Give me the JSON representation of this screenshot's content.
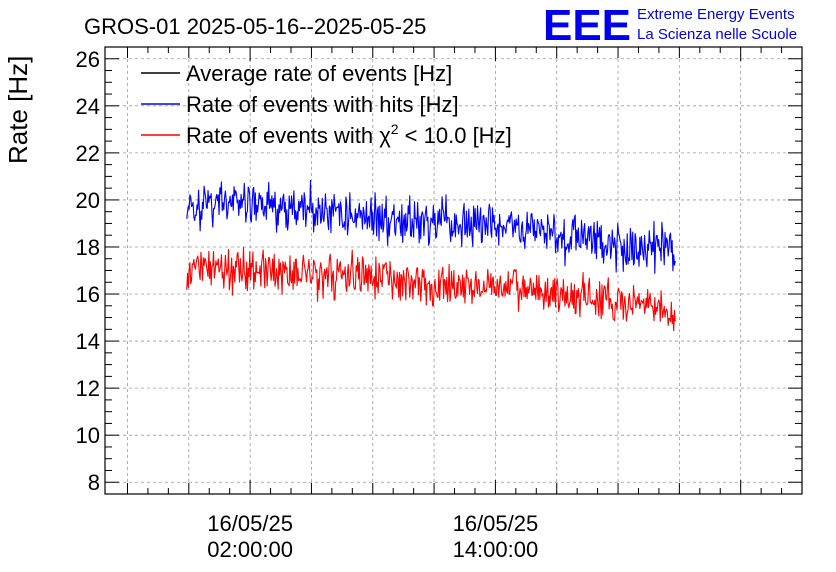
{
  "header": {
    "title": "GROS-01 2025-05-16--2025-05-25",
    "logo_text": "EEE",
    "project_line1": "Extreme Energy Events",
    "project_line2": "La Scienza nelle Scuole"
  },
  "colors": {
    "average": "#000000",
    "hits": "#0000ff",
    "chi2": "#ff0000",
    "logo": "#0000ee",
    "grid": "#9a9a9a"
  },
  "chart_data": {
    "type": "line",
    "title": "GROS-01 2025-05-16--2025-05-25",
    "ylabel": "Rate [Hz]",
    "xlabel": "",
    "ylim": [
      7.5,
      26.5
    ],
    "y_ticks": [
      8,
      10,
      12,
      14,
      16,
      18,
      20,
      22,
      24,
      26
    ],
    "y_tick_labels": [
      "8",
      "10",
      "12",
      "14",
      "16",
      "18",
      "20",
      "22",
      "24",
      "26"
    ],
    "x_unit": "hours since 16/05/25 00:00:00",
    "xlim": [
      -5.1,
      29.0
    ],
    "x_major_ticks": [
      2,
      14
    ],
    "x_tick_labels": [
      {
        "date": "16/05/25",
        "time": "02:00:00"
      },
      {
        "date": "16/05/25",
        "time": "14:00:00"
      }
    ],
    "grid": true,
    "legend_position": "top-left",
    "legend": [
      "Average rate of events [Hz]",
      "Rate of events with hits [Hz]",
      "Rate of events with χ² < 10.0 [Hz]"
    ],
    "legend_parts": {
      "chi2_prefix": "Rate of events with χ",
      "chi2_sup": "2",
      "chi2_suffix": " < 10.0 [Hz]"
    },
    "x_range_data": [
      -1.1,
      22.8
    ],
    "series": [
      {
        "name": "Rate of events with hits [Hz]",
        "color": "#0000ff",
        "x": [
          -1.0,
          0.0,
          1.0,
          2.0,
          3.0,
          4.0,
          5.0,
          6.0,
          7.0,
          8.0,
          9.0,
          10.0,
          11.0,
          12.0,
          13.0,
          14.0,
          15.0,
          16.0,
          17.0,
          18.0,
          19.0,
          20.0,
          21.0,
          22.0,
          22.8
        ],
        "values": [
          19.5,
          19.8,
          19.9,
          19.8,
          19.7,
          19.6,
          19.6,
          19.5,
          19.4,
          19.3,
          19.2,
          19.1,
          19.0,
          18.9,
          18.9,
          18.9,
          18.8,
          18.7,
          18.6,
          18.4,
          18.3,
          18.1,
          18.0,
          17.9,
          17.6
        ],
        "noise": 0.85
      },
      {
        "name": "Rate of events with χ² < 10.0 [Hz]",
        "color": "#ff0000",
        "x": [
          -1.0,
          0.0,
          1.0,
          2.0,
          3.0,
          4.0,
          5.0,
          6.0,
          7.0,
          8.0,
          9.0,
          10.0,
          11.0,
          12.0,
          13.0,
          14.0,
          15.0,
          16.0,
          17.0,
          18.0,
          19.0,
          20.0,
          21.0,
          22.0,
          22.8
        ],
        "values": [
          16.9,
          17.2,
          17.2,
          17.1,
          17.0,
          16.9,
          16.9,
          16.8,
          16.8,
          16.7,
          16.6,
          16.5,
          16.4,
          16.3,
          16.3,
          16.3,
          16.2,
          16.1,
          16.0,
          15.9,
          15.8,
          15.6,
          15.5,
          15.4,
          15.0
        ],
        "noise": 0.75
      }
    ]
  }
}
